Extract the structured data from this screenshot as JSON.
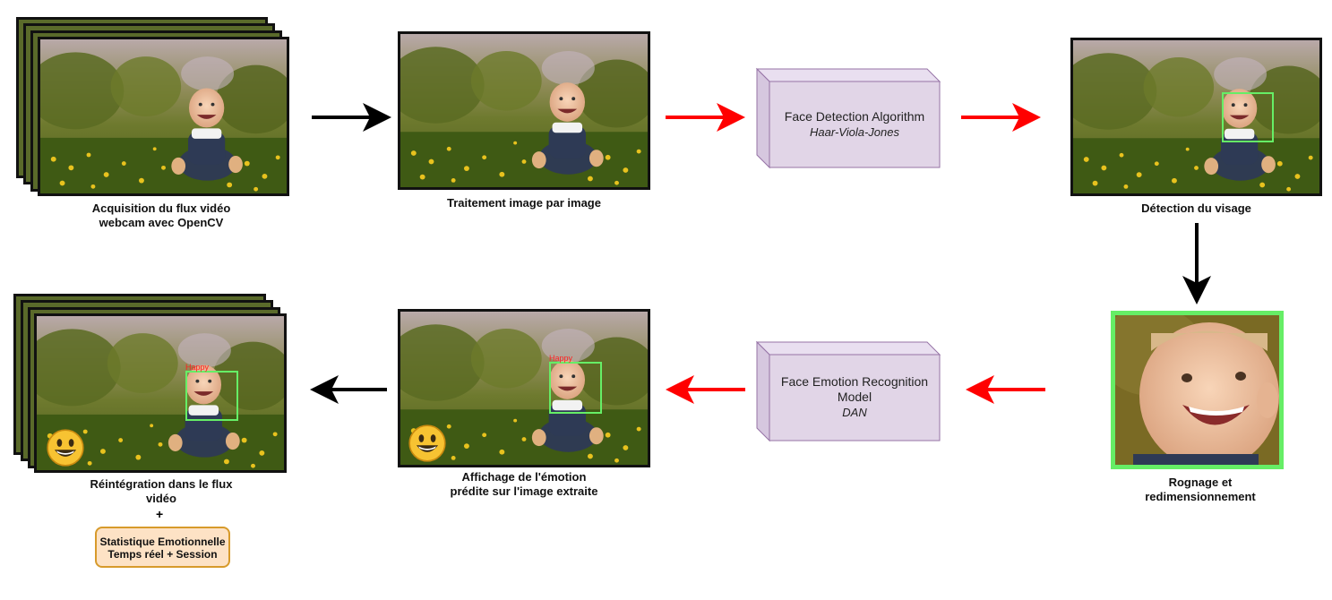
{
  "captions": {
    "acquisition": "Acquisition du flux vidéo\nwebcam avec OpenCV",
    "traitement": "Traitement image par image",
    "detection": "Détection du visage",
    "rognage": "Rognage et\nredimensionnement",
    "affichage": "Affichage de l'émotion\nprédite sur l'image extraite",
    "reintegration": "Réintégration dans le flux\nvidéo"
  },
  "face_detection": {
    "title": "Face Detection Algorithm",
    "subtitle": "Haar-Viola-Jones"
  },
  "emotion_model": {
    "title": "Face Emotion Recognition\nModel",
    "subtitle": "DAN"
  },
  "emotion_label": "Happy",
  "plus_sign": "+",
  "stat_box": "Statistique Emotionnelle\nTemps réel + Session",
  "colors": {
    "arrow_black": "#000000",
    "arrow_red": "#ff0000",
    "box_fill": "#e1d5e7",
    "box_stroke": "#9673a6",
    "face_box": "#66ee66",
    "stat_fill": "#fde2c5",
    "stat_stroke": "#d79a2b"
  }
}
